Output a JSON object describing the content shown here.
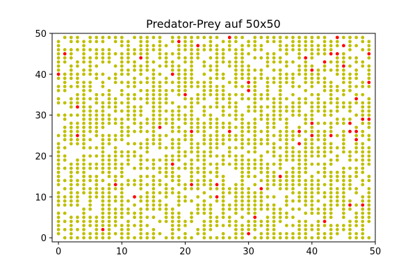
{
  "chart_data": {
    "type": "scatter",
    "title": "Predator-Prey auf 50x50",
    "xlabel": "",
    "ylabel": "",
    "xlim": [
      -1,
      50
    ],
    "ylim": [
      -1,
      50
    ],
    "xticks": [
      0,
      10,
      20,
      30,
      40,
      50
    ],
    "yticks": [
      0,
      10,
      20,
      30,
      40,
      50
    ],
    "grid": false,
    "legend": "none",
    "series": [
      {
        "color": "#bfbf00",
        "grid_size": 50,
        "density": 0.72,
        "note": "prey cells fill most of the 50x50 lattice (0-49); exact occupancy not individually readable"
      },
      {
        "color": "#ff0000",
        "points": [
          [
            0,
            40
          ],
          [
            1,
            45
          ],
          [
            3,
            32
          ],
          [
            3,
            25
          ],
          [
            7,
            2
          ],
          [
            9,
            13
          ],
          [
            12,
            10
          ],
          [
            13,
            44
          ],
          [
            16,
            27
          ],
          [
            18,
            40
          ],
          [
            18,
            18
          ],
          [
            19,
            48
          ],
          [
            20,
            35
          ],
          [
            21,
            26
          ],
          [
            21,
            13
          ],
          [
            22,
            47
          ],
          [
            25,
            13
          ],
          [
            25,
            10
          ],
          [
            27,
            49
          ],
          [
            27,
            26
          ],
          [
            30,
            38
          ],
          [
            30,
            36
          ],
          [
            30,
            1
          ],
          [
            31,
            5
          ],
          [
            32,
            12
          ],
          [
            35,
            15
          ],
          [
            38,
            26
          ],
          [
            38,
            23
          ],
          [
            39,
            44
          ],
          [
            40,
            41
          ],
          [
            40,
            28
          ],
          [
            40,
            25
          ],
          [
            42,
            43
          ],
          [
            42,
            4
          ],
          [
            43,
            45
          ],
          [
            43,
            25
          ],
          [
            44,
            49
          ],
          [
            44,
            45
          ],
          [
            45,
            47
          ],
          [
            45,
            42
          ],
          [
            46,
            28
          ],
          [
            46,
            26
          ],
          [
            46,
            8
          ],
          [
            47,
            34
          ],
          [
            47,
            26
          ],
          [
            47,
            24
          ],
          [
            48,
            29
          ],
          [
            48,
            8
          ],
          [
            49,
            45
          ],
          [
            49,
            38
          ],
          [
            49,
            29
          ]
        ]
      }
    ]
  }
}
